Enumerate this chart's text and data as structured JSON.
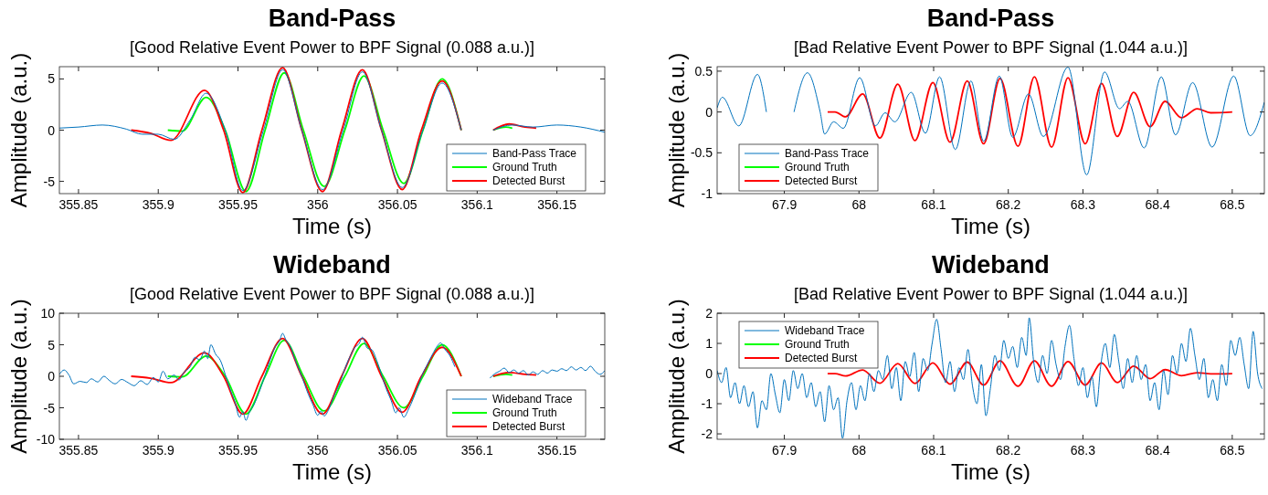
{
  "chart_data": [
    {
      "type": "line",
      "title": "Band-Pass",
      "subtitle": "[Good Relative Event Power to BPF Signal (0.088 a.u.)]",
      "xlabel": "Time (s)",
      "ylabel": "Amplitude (a.u.)",
      "xlim": [
        355.838,
        356.18
      ],
      "xticks": [
        355.85,
        355.9,
        355.95,
        356,
        356.05,
        356.1,
        356.15
      ],
      "ylim": [
        -6.2,
        6.2
      ],
      "yticks": [
        -5,
        0,
        5
      ],
      "grid": false,
      "legend": "bottom right",
      "series": [
        {
          "name": "Band-Pass Trace",
          "color": "#0072bd",
          "x": [
            355.838,
            355.85,
            355.865,
            355.88,
            355.89,
            355.9,
            355.91,
            355.92,
            355.93,
            355.942,
            355.953,
            355.966,
            355.978,
            355.99,
            356.003,
            356.016,
            356.028,
            356.04,
            356.053,
            356.066,
            356.078,
            356.09,
            356.1,
            356.11,
            356.122,
            356.135,
            356.15,
            356.165,
            356.18
          ],
          "values": [
            0.2,
            0.3,
            0.5,
            0.1,
            -0.4,
            -0.4,
            -0.9,
            1.0,
            3.6,
            0,
            -5.9,
            0,
            5.9,
            0,
            -5.8,
            0,
            5.7,
            0,
            -5.6,
            0,
            4.6,
            0,
            null,
            0,
            0.5,
            0.3,
            0.5,
            0.3,
            -0.2
          ]
        },
        {
          "name": "Ground Truth",
          "color": "#00ff00",
          "x": [
            355.906,
            355.915,
            355.93,
            355.942,
            355.955,
            355.967,
            355.979,
            355.991,
            356.004,
            356.017,
            356.029,
            356.041,
            356.054,
            356.066,
            356.078,
            356.09,
            356.1,
            356.11,
            356.118,
            356.122
          ],
          "values": [
            0,
            -0.1,
            3.2,
            0,
            -6.0,
            0,
            5.6,
            0,
            -5.5,
            0,
            5.3,
            0,
            -5.2,
            0,
            5.0,
            0,
            null,
            0,
            0.3,
            0.2
          ]
        },
        {
          "name": "Detected Burst",
          "color": "#ff0000",
          "x": [
            355.883,
            355.895,
            355.908,
            355.929,
            355.941,
            355.953,
            355.965,
            355.978,
            355.99,
            356.003,
            356.015,
            356.028,
            356.04,
            356.053,
            356.065,
            356.078,
            356.09,
            356.1,
            356.11,
            356.12,
            356.13,
            356.137
          ],
          "values": [
            0,
            -0.3,
            -1.0,
            3.9,
            0,
            -6.1,
            0,
            6.1,
            0,
            -6.0,
            0,
            5.9,
            0,
            -5.8,
            0,
            4.8,
            0,
            null,
            0,
            0.6,
            0.3,
            0.2
          ]
        }
      ]
    },
    {
      "type": "line",
      "title": "Band-Pass",
      "subtitle": "[Bad Relative Event Power to BPF Signal (1.044 a.u.)]",
      "xlabel": "Time (s)",
      "ylabel": "Amplitude (a.u.)",
      "xlim": [
        67.81,
        68.543
      ],
      "xticks": [
        67.9,
        68,
        68.1,
        68.2,
        68.3,
        68.4,
        68.5
      ],
      "ylim": [
        -1,
        0.555
      ],
      "yticks": [
        -1,
        -0.5,
        0,
        0.5
      ],
      "grid": false,
      "legend": "bottom left",
      "series": [
        {
          "name": "Band-Pass Trace",
          "color": "#0072bd",
          "x": [
            67.81,
            67.817,
            67.839,
            67.864,
            67.876,
            67.895,
            67.913,
            67.931,
            67.948,
            67.954,
            67.966,
            67.979,
            68.001,
            68.022,
            68.035,
            68.048,
            68.07,
            68.089,
            68.108,
            68.129,
            68.15,
            68.167,
            68.188,
            68.206,
            68.227,
            68.247,
            68.28,
            68.305,
            68.329,
            68.349,
            68.36,
            68.382,
            68.405,
            68.424,
            68.447,
            68.473,
            68.502,
            68.524,
            68.543
          ],
          "values": [
            0.05,
            0.18,
            -0.17,
            0.46,
            0,
            null,
            0,
            0.48,
            0,
            -0.27,
            -0.12,
            -0.2,
            0.42,
            -0.17,
            -0.01,
            -0.12,
            0.24,
            -0.26,
            0.43,
            -0.46,
            0.38,
            -0.36,
            0.44,
            -0.31,
            0.22,
            -0.3,
            0.55,
            -0.77,
            0.49,
            0.04,
            0.13,
            -0.44,
            0.43,
            -0.28,
            0.36,
            -0.43,
            0.44,
            -0.29,
            0.12
          ]
        },
        {
          "name": "Ground Truth",
          "color": "#00ff00"
        },
        {
          "name": "Detected Burst",
          "color": "#ff0000",
          "x": [
            67.958,
            67.968,
            67.982,
            68.005,
            68.028,
            68.052,
            68.075,
            68.099,
            68.122,
            68.145,
            68.167,
            68.189,
            68.213,
            68.235,
            68.258,
            68.28,
            68.303,
            68.325,
            68.346,
            68.368,
            68.39,
            68.41,
            68.432,
            68.453,
            68.471,
            68.5
          ],
          "values": [
            0,
            0,
            -0.06,
            0.22,
            -0.32,
            0.34,
            -0.35,
            0.36,
            -0.37,
            0.38,
            -0.39,
            0.41,
            -0.42,
            0.43,
            -0.43,
            0.42,
            -0.39,
            0.35,
            -0.3,
            0.24,
            -0.18,
            0.13,
            -0.07,
            0.04,
            -0.01,
            0
          ]
        }
      ]
    },
    {
      "type": "line",
      "title": "Wideband",
      "subtitle": "[Good Relative Event Power to BPF Signal (0.088 a.u.)]",
      "xlabel": "Time (s)",
      "ylabel": "Amplitude (a.u.)",
      "xlim": [
        355.838,
        356.18
      ],
      "xticks": [
        355.85,
        355.9,
        355.95,
        356,
        356.05,
        356.1,
        356.15
      ],
      "ylim": [
        -10,
        10
      ],
      "yticks": [
        -10,
        -5,
        0,
        5,
        10
      ],
      "grid": false,
      "legend": "bottom right",
      "series": [
        {
          "name": "Wideband Trace",
          "color": "#0072bd",
          "x": [
            355.838,
            355.841,
            355.844,
            355.847,
            355.851,
            355.855,
            355.858,
            355.862,
            355.866,
            355.869,
            355.873,
            355.877,
            355.881,
            355.885,
            355.889,
            355.893,
            355.897,
            355.9,
            355.903,
            355.906,
            355.91,
            355.913,
            355.916,
            355.92,
            355.923,
            355.926,
            355.929,
            355.931,
            355.933,
            355.936,
            355.939,
            355.942,
            355.945,
            355.948,
            355.951,
            355.953,
            355.955,
            355.957,
            355.96,
            355.964,
            355.967,
            355.97,
            355.973,
            355.976,
            355.978,
            355.98,
            355.983,
            355.986,
            355.99,
            355.994,
            355.997,
            356.0,
            356.002,
            356.004,
            356.007,
            356.01,
            356.014,
            356.017,
            356.02,
            356.023,
            356.026,
            356.028,
            356.031,
            356.034,
            356.037,
            356.04,
            356.043,
            356.046,
            356.049,
            356.051,
            356.054,
            356.057,
            356.06,
            356.063,
            356.066,
            356.069,
            356.072,
            356.075,
            356.077,
            356.08,
            356.083,
            356.086,
            356.092,
            356.108,
            356.111,
            356.114,
            356.117,
            356.12,
            356.123,
            356.126,
            356.129,
            356.132,
            356.135,
            356.138,
            356.141,
            356.144,
            356.147,
            356.15,
            356.153,
            356.156,
            356.159,
            356.162,
            356.165,
            356.168,
            356.171,
            356.174,
            356.177,
            356.18
          ],
          "values": [
            0.3,
            1.0,
            0.2,
            -1.2,
            -0.8,
            -1.0,
            -0.4,
            -0.9,
            0.0,
            -0.6,
            -1.2,
            -0.5,
            -1.0,
            -1.5,
            -0.7,
            -1.3,
            -0.2,
            -0.9,
            0.8,
            -0.4,
            0.2,
            -0.6,
            0.6,
            1.5,
            3.0,
            2.6,
            4.0,
            2.8,
            5.0,
            3.5,
            2.5,
            0.3,
            -2.0,
            -4.0,
            -6.5,
            -5.6,
            -7.0,
            -5.8,
            -4.5,
            -2.0,
            0.2,
            2.5,
            4.5,
            5.6,
            6.8,
            5.8,
            4.6,
            2.5,
            0.0,
            -2.8,
            -4.5,
            -6.2,
            -5.5,
            -6.3,
            -5.2,
            -3.2,
            -1.0,
            1.2,
            3.0,
            4.5,
            5.2,
            6.2,
            4.5,
            4.2,
            2.5,
            0.3,
            -2.0,
            -3.8,
            -5.8,
            -5.0,
            -6.5,
            -5.2,
            -3.5,
            -1.5,
            0.5,
            2.0,
            3.5,
            4.8,
            5.3,
            4.2,
            3.2,
            1.5,
            null,
            -0.3,
            0.4,
            0.8,
            1.3,
            0.6,
            1.0,
            0.5,
            0.9,
            0.2,
            0.7,
            0.3,
            0.9,
            0.5,
            1.0,
            0.8,
            1.2,
            0.9,
            1.5,
            1.0,
            1.4,
            0.9,
            1.6,
            0.8,
            0.3,
            0.9
          ]
        },
        {
          "name": "Ground Truth",
          "color": "#00ff00",
          "x": [
            355.906,
            355.915,
            355.93,
            355.942,
            355.955,
            355.967,
            355.979,
            355.991,
            356.004,
            356.017,
            356.029,
            356.041,
            356.054,
            356.066,
            356.078,
            356.09,
            356.1,
            356.11,
            356.118,
            356.122
          ],
          "values": [
            0,
            -0.1,
            3.2,
            0,
            -6.0,
            0,
            5.7,
            0,
            -5.5,
            0,
            5.2,
            0,
            -5.0,
            0,
            5.0,
            0,
            null,
            0,
            0.3,
            0.2
          ]
        },
        {
          "name": "Detected Burst",
          "color": "#ff0000",
          "x": [
            355.883,
            355.895,
            355.908,
            355.929,
            355.941,
            355.953,
            355.965,
            355.978,
            355.99,
            356.003,
            356.015,
            356.028,
            356.04,
            356.053,
            356.065,
            356.078,
            356.09,
            356.1,
            356.11,
            356.12,
            356.13,
            356.137
          ],
          "values": [
            0,
            -0.3,
            -1.0,
            3.7,
            0,
            -6.0,
            0,
            6.0,
            0,
            -6.0,
            0,
            6.0,
            0,
            -5.7,
            0,
            4.6,
            0,
            null,
            0,
            0.6,
            0.3,
            0.2
          ]
        }
      ]
    },
    {
      "type": "line",
      "title": "Wideband",
      "subtitle": "[Bad Relative Event Power to BPF Signal (1.044 a.u.)]",
      "xlabel": "Time (s)",
      "ylabel": "Amplitude (a.u.)",
      "xlim": [
        67.81,
        68.543
      ],
      "xticks": [
        67.9,
        68,
        68.1,
        68.2,
        68.3,
        68.4,
        68.5
      ],
      "ylim": [
        -2.18,
        2
      ],
      "yticks": [
        -2,
        -1,
        0,
        1,
        2
      ],
      "grid": false,
      "legend": "top left",
      "series": [
        {
          "name": "Wideband Trace",
          "color": "#0072bd",
          "x": [
            67.81,
            67.816,
            67.822,
            67.828,
            67.834,
            67.84,
            67.846,
            67.852,
            67.858,
            67.864,
            67.87,
            67.876,
            67.882,
            67.888,
            67.894,
            67.9,
            67.906,
            67.912,
            67.918,
            67.924,
            67.93,
            67.936,
            67.942,
            67.948,
            67.954,
            67.96,
            67.966,
            67.972,
            67.978,
            67.984,
            67.99,
            67.996,
            68.002,
            68.008,
            68.014,
            68.02,
            68.026,
            68.032,
            68.038,
            68.044,
            68.05,
            68.056,
            68.062,
            68.068,
            68.074,
            68.08,
            68.086,
            68.092,
            68.098,
            68.104,
            68.11,
            68.116,
            68.122,
            68.128,
            68.134,
            68.14,
            68.146,
            68.152,
            68.158,
            68.164,
            68.17,
            68.176,
            68.182,
            68.188,
            68.194,
            68.2,
            68.206,
            68.212,
            68.218,
            68.224,
            68.228,
            68.234,
            68.24,
            68.246,
            68.252,
            68.258,
            68.264,
            68.27,
            68.276,
            68.282,
            68.288,
            68.294,
            68.3,
            68.306,
            68.312,
            68.318,
            68.324,
            68.33,
            68.336,
            68.342,
            68.348,
            68.354,
            68.36,
            68.366,
            68.372,
            68.378,
            68.384,
            68.39,
            68.396,
            68.402,
            68.408,
            68.414,
            68.42,
            68.426,
            68.432,
            68.438,
            68.444,
            68.45,
            68.456,
            68.462,
            68.468,
            68.474,
            68.48,
            68.486,
            68.492,
            68.498,
            68.504,
            68.51,
            68.516,
            68.522,
            68.528,
            68.534,
            68.54
          ],
          "values": [
            0.1,
            -0.3,
            0.2,
            -0.8,
            -0.3,
            -1.0,
            -0.4,
            -1.1,
            -0.6,
            -1.8,
            -0.9,
            -1.2,
            0.0,
            -0.7,
            -1.3,
            -0.2,
            -0.9,
            0.1,
            -0.5,
            0.0,
            -0.8,
            -0.3,
            -1.1,
            -0.6,
            -1.6,
            -0.4,
            -1.2,
            -0.8,
            -2.15,
            -0.9,
            -0.3,
            -1.2,
            -0.4,
            -0.9,
            0.0,
            -0.6,
            0.1,
            -0.2,
            0.6,
            -0.5,
            0.2,
            -0.9,
            0.4,
            -0.1,
            0.7,
            -0.6,
            0.5,
            0.1,
            1.0,
            1.8,
            0.8,
            -0.3,
            0.4,
            -0.6,
            0.2,
            -0.2,
            0.8,
            -0.4,
            -1.0,
            0.3,
            -1.4,
            -0.5,
            0.6,
            0.1,
            1.1,
            0.5,
            0.9,
            0.2,
            1.2,
            0.6,
            1.85,
            0.4,
            -0.3,
            0.6,
            0.0,
            1.1,
            0.3,
            -0.2,
            0.9,
            1.6,
            0.5,
            -0.4,
            0.2,
            -0.8,
            -0.1,
            -1.1,
            0.3,
            1.0,
            0.2,
            1.3,
            0.4,
            -0.5,
            0.5,
            -0.3,
            0.6,
            -0.2,
            0.3,
            -0.9,
            -0.3,
            -1.2,
            0.1,
            -0.7,
            0.6,
            0.0,
            1.0,
            0.4,
            1.5,
            0.6,
            -0.2,
            0.5,
            -0.8,
            -0.2,
            -0.9,
            0.3,
            -0.4,
            1.1,
            0.6,
            1.2,
            0.3,
            -0.5,
            1.4,
            0.0,
            -0.5
          ]
        },
        {
          "name": "Ground Truth",
          "color": "#00ff00"
        },
        {
          "name": "Detected Burst",
          "color": "#ff0000",
          "x": [
            67.958,
            67.968,
            67.982,
            68.005,
            68.028,
            68.052,
            68.075,
            68.099,
            68.122,
            68.145,
            68.167,
            68.189,
            68.213,
            68.235,
            68.258,
            68.28,
            68.303,
            68.325,
            68.346,
            68.368,
            68.39,
            68.41,
            68.432,
            68.453,
            68.471,
            68.5
          ],
          "values": [
            0,
            0,
            -0.08,
            0.12,
            -0.32,
            0.33,
            -0.33,
            0.35,
            -0.35,
            0.38,
            -0.38,
            0.42,
            -0.42,
            0.42,
            -0.42,
            0.4,
            -0.38,
            0.35,
            -0.3,
            0.25,
            -0.17,
            0.13,
            -0.07,
            0.03,
            -0.01,
            0
          ]
        }
      ]
    }
  ]
}
